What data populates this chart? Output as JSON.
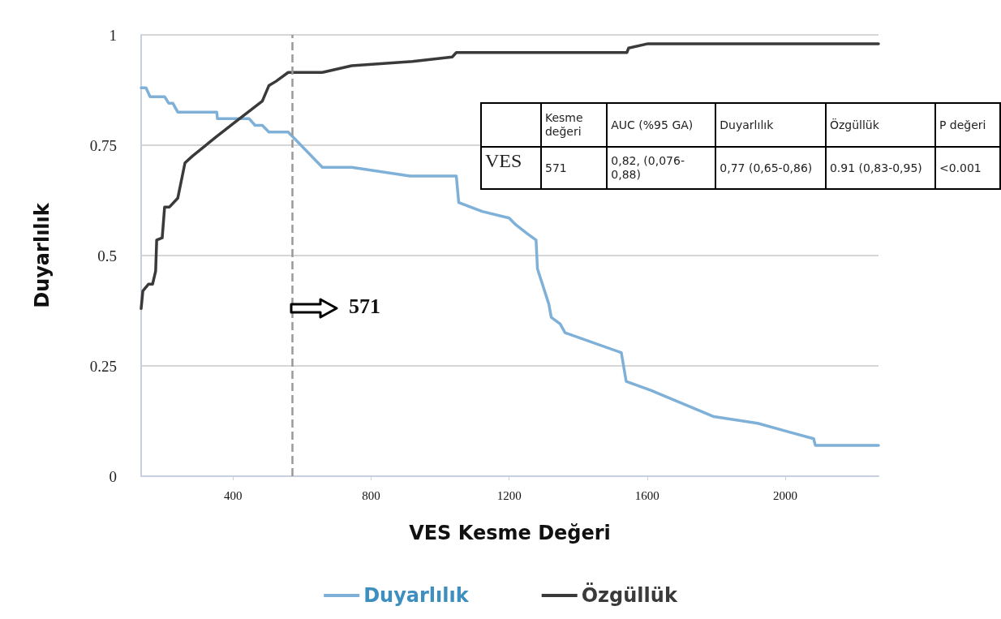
{
  "chart_data": {
    "type": "line",
    "xlabel": "VES Kesme Değeri",
    "ylabel": "Duyarlılık",
    "xlim": [
      134,
      2270
    ],
    "xticks": [
      400,
      800,
      1200,
      1600,
      2000
    ],
    "ylim": [
      0,
      1
    ],
    "yticks": [
      0,
      0.25,
      0.5,
      0.75,
      1
    ],
    "grid": "y",
    "legend": "bottom",
    "marker": "none",
    "line_style": "solid",
    "series": [
      {
        "name": "Duyarlılık",
        "color": "#7fb0d8",
        "x": [
          134,
          148,
          160,
          202,
          214,
          226,
          240,
          353,
          355,
          447,
          464,
          485,
          504,
          560,
          659,
          744,
          913,
          1047,
          1054,
          1122,
          1200,
          1219,
          1252,
          1278,
          1282,
          1315,
          1322,
          1348,
          1362,
          1525,
          1539,
          1609,
          1793,
          1920,
          2012,
          2082,
          2087,
          2270
        ],
        "values": [
          0.88,
          0.88,
          0.86,
          0.86,
          0.845,
          0.845,
          0.825,
          0.825,
          0.81,
          0.81,
          0.795,
          0.795,
          0.78,
          0.78,
          0.7,
          0.7,
          0.68,
          0.68,
          0.62,
          0.6,
          0.585,
          0.57,
          0.55,
          0.535,
          0.47,
          0.39,
          0.36,
          0.345,
          0.325,
          0.28,
          0.215,
          0.195,
          0.135,
          0.12,
          0.1,
          0.085,
          0.07,
          0.07
        ]
      },
      {
        "name": "Özgüllük",
        "color": "#3a3a3a",
        "x": [
          134,
          139,
          155,
          167,
          176,
          179,
          195,
          202,
          216,
          240,
          261,
          282,
          353,
          402,
          485,
          504,
          525,
          560,
          659,
          744,
          920,
          1035,
          1047,
          1541,
          1546,
          1602,
          2270
        ],
        "values": [
          0.38,
          0.42,
          0.435,
          0.435,
          0.465,
          0.535,
          0.54,
          0.61,
          0.61,
          0.63,
          0.71,
          0.725,
          0.77,
          0.8,
          0.85,
          0.885,
          0.895,
          0.915,
          0.915,
          0.93,
          0.94,
          0.95,
          0.96,
          0.96,
          0.97,
          0.98,
          0.98
        ]
      }
    ],
    "ref_lines": [
      {
        "axis": "x",
        "value": 571,
        "label": "571",
        "color": "#999999",
        "line_style": "dashed"
      }
    ],
    "annotations": [
      "Kesme değeri",
      "AUC (%95 GA)",
      "Duyarlılık",
      "Özgüllük",
      "P değeri",
      "VES",
      "571",
      "0,82, (0,076-0,88)",
      "0,77 (0,65-0,86)",
      "0.91 (0,83-0,95)",
      "<0.001"
    ]
  }
}
